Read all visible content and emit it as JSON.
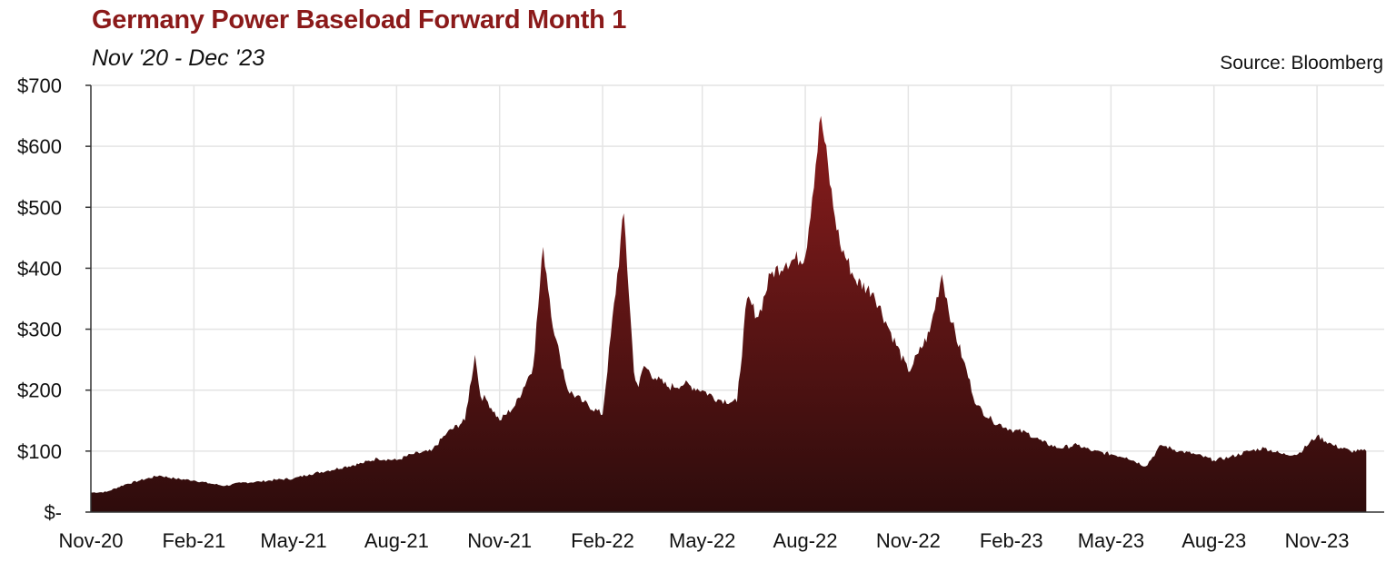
{
  "header": {
    "title": "Germany Power Baseload Forward Month 1",
    "subtitle": "Nov '20 - Dec '23",
    "source": "Source: Bloomberg"
  },
  "colors": {
    "title": "#8b1a1a",
    "area_top": "#8b1d1d",
    "area_bottom": "#2e0c0c",
    "grid": "#e4e4e4"
  },
  "chart_data": {
    "type": "area",
    "title": "Germany Power Baseload Forward Month 1",
    "subtitle": "Nov '20 - Dec '23",
    "xlabel": "",
    "ylabel": "",
    "ylim": [
      0,
      700
    ],
    "y_ticks": [
      0,
      100,
      200,
      300,
      400,
      500,
      600,
      700
    ],
    "y_tick_labels": [
      "$-",
      "$100",
      "$200",
      "$300",
      "$400",
      "$500",
      "$600",
      "$700"
    ],
    "x_tick_labels": [
      "Nov-20",
      "Feb-21",
      "May-21",
      "Aug-21",
      "Nov-21",
      "Feb-22",
      "May-22",
      "Aug-22",
      "Nov-22",
      "Feb-23",
      "May-23",
      "Aug-23",
      "Nov-23"
    ],
    "grid": true,
    "legend": "none",
    "series": [
      {
        "x": [
          "2020-11-01",
          "2020-11-15",
          "2020-12-01",
          "2020-12-15",
          "2021-01-01",
          "2021-01-15",
          "2021-02-01",
          "2021-02-15",
          "2021-03-01",
          "2021-03-15",
          "2021-04-01",
          "2021-04-15",
          "2021-05-01",
          "2021-05-15",
          "2021-06-01",
          "2021-06-15",
          "2021-07-01",
          "2021-07-15",
          "2021-08-01",
          "2021-08-15",
          "2021-09-01",
          "2021-09-15",
          "2021-10-01",
          "2021-10-10",
          "2021-10-15",
          "2021-10-20",
          "2021-11-01",
          "2021-11-15",
          "2021-12-01",
          "2021-12-10",
          "2021-12-20",
          "2021-12-25",
          "2022-01-01",
          "2022-01-15",
          "2022-02-01",
          "2022-02-20",
          "2022-03-01",
          "2022-03-05",
          "2022-03-10",
          "2022-03-20",
          "2022-04-01",
          "2022-04-15",
          "2022-05-01",
          "2022-05-15",
          "2022-06-01",
          "2022-06-10",
          "2022-06-20",
          "2022-07-01",
          "2022-07-15",
          "2022-08-01",
          "2022-08-15",
          "2022-08-26",
          "2022-09-01",
          "2022-09-15",
          "2022-10-01",
          "2022-10-15",
          "2022-11-01",
          "2022-11-10",
          "2022-11-20",
          "2022-12-01",
          "2022-12-10",
          "2022-12-20",
          "2023-01-01",
          "2023-01-15",
          "2023-02-01",
          "2023-02-15",
          "2023-03-01",
          "2023-03-15",
          "2023-04-01",
          "2023-04-15",
          "2023-05-01",
          "2023-05-15",
          "2023-06-01",
          "2023-06-15",
          "2023-07-01",
          "2023-07-15",
          "2023-08-01",
          "2023-08-15",
          "2023-09-01",
          "2023-09-15",
          "2023-10-01",
          "2023-10-15",
          "2023-11-01",
          "2023-11-15",
          "2023-12-01",
          "2023-12-15"
        ],
        "values": [
          32,
          33,
          45,
          52,
          60,
          55,
          52,
          47,
          43,
          48,
          50,
          53,
          55,
          62,
          68,
          74,
          80,
          88,
          85,
          95,
          100,
          130,
          150,
          258,
          190,
          185,
          150,
          175,
          240,
          435,
          290,
          255,
          200,
          180,
          160,
          490,
          230,
          205,
          240,
          220,
          205,
          210,
          200,
          185,
          180,
          350,
          320,
          390,
          410,
          420,
          650,
          500,
          440,
          380,
          360,
          300,
          230,
          260,
          295,
          390,
          310,
          250,
          175,
          150,
          135,
          130,
          115,
          105,
          110,
          100,
          95,
          90,
          75,
          110,
          100,
          95,
          85,
          90,
          100,
          105,
          95,
          95,
          125,
          110,
          100,
          100
        ]
      }
    ]
  }
}
